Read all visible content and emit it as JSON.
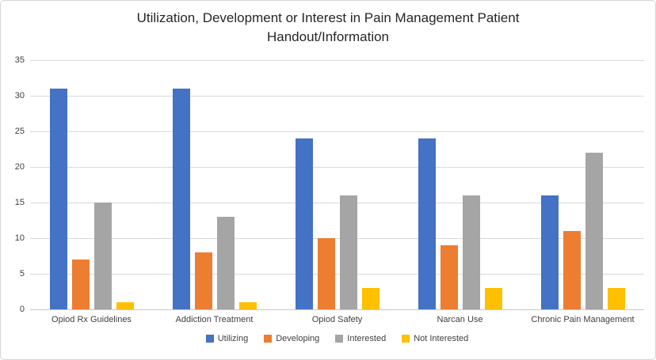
{
  "window": {
    "background": "#ffffff",
    "border_color": "#d6d6d6"
  },
  "title_lines": [
    "Utilization, Development or Interest in Pain Management Patient",
    "Handout/Information"
  ],
  "chart_data": {
    "type": "bar",
    "title": "Utilization, Development or Interest in Pain Management Patient Handout/Information",
    "categories": [
      "Opiod Rx Guidelines",
      "Addiction Treatment",
      "Opiod Safety",
      "Narcan Use",
      "Chronic Pain Management"
    ],
    "series": [
      {
        "name": "Utilizing",
        "color": "#4472C4",
        "values": [
          31,
          31,
          24,
          24,
          16
        ]
      },
      {
        "name": "Developing",
        "color": "#ED7D31",
        "values": [
          7,
          8,
          10,
          9,
          11
        ]
      },
      {
        "name": "Interested",
        "color": "#A5A5A5",
        "values": [
          15,
          13,
          16,
          16,
          22
        ]
      },
      {
        "name": "Not Interested",
        "color": "#FFC000",
        "values": [
          1,
          1,
          3,
          3,
          3
        ]
      }
    ],
    "xlabel": "",
    "ylabel": "",
    "ylim": [
      0,
      35
    ],
    "ytick_step": 5,
    "yticks": [
      0,
      5,
      10,
      15,
      20,
      25,
      30,
      35
    ],
    "grid": true,
    "legend_position": "bottom"
  },
  "colors": {
    "gridline": "#d9d9d9",
    "baseline": "#c9c9c9",
    "axis_text": "#404040",
    "title_text": "#262626"
  }
}
